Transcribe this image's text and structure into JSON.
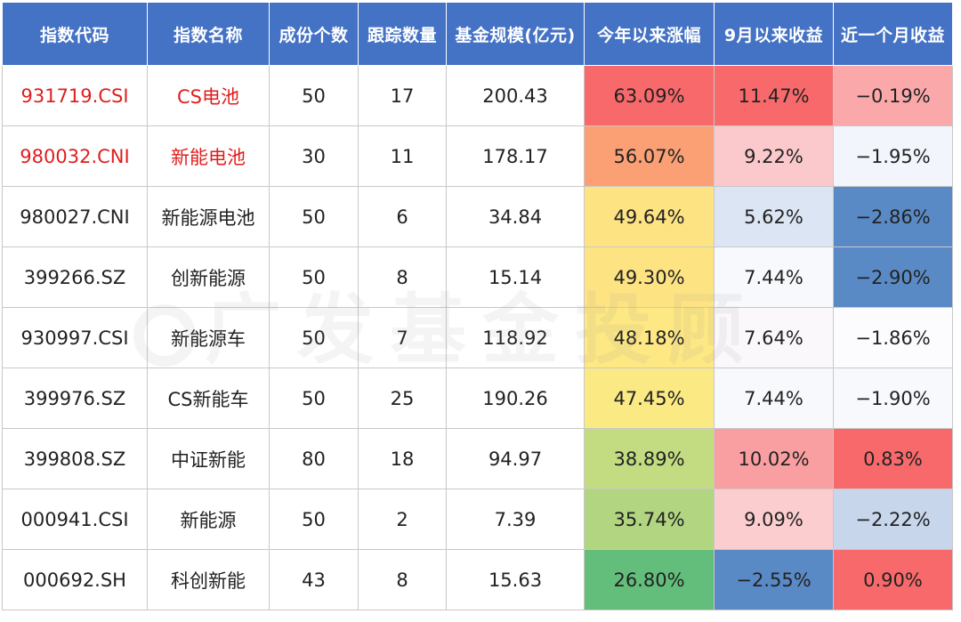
{
  "headers": [
    "指数代码",
    "指数名称",
    "成份个数",
    "跟踪数量",
    "基金规模(亿元)",
    "今年以来涨幅",
    "9月以来收益",
    "近一个月收益"
  ],
  "watermark": "广发基金投顾",
  "rows": [
    {
      "code": "931719.CSI",
      "name": "CS电池",
      "count": "50",
      "track": "17",
      "scale": "200.43",
      "ytd": "63.09%",
      "sep": "11.47%",
      "month": "−0.19%",
      "highlight": true,
      "colors": {
        "ytd": "#f8696b",
        "sep": "#f8696b",
        "month": "#fba8aa"
      }
    },
    {
      "code": "980032.CNI",
      "name": "新能电池",
      "count": "30",
      "track": "11",
      "scale": "178.17",
      "ytd": "56.07%",
      "sep": "9.22%",
      "month": "−1.95%",
      "highlight": true,
      "colors": {
        "ytd": "#fba075",
        "sep": "#fbc9cb",
        "month": "#f2f5fb"
      }
    },
    {
      "code": "980027.CNI",
      "name": "新能源电池",
      "count": "50",
      "track": "6",
      "scale": "34.84",
      "ytd": "49.64%",
      "sep": "5.62%",
      "month": "−2.86%",
      "highlight": false,
      "colors": {
        "ytd": "#fee383",
        "sep": "#dce5f3",
        "month": "#5a8ac6"
      }
    },
    {
      "code": "399266.SZ",
      "name": "创新能源",
      "count": "50",
      "track": "8",
      "scale": "15.14",
      "ytd": "49.30%",
      "sep": "7.44%",
      "month": "−2.90%",
      "highlight": false,
      "colors": {
        "ytd": "#fee383",
        "sep": "#f8f9fc",
        "month": "#5a8ac6"
      }
    },
    {
      "code": "930997.CSI",
      "name": "新能源车",
      "count": "50",
      "track": "7",
      "scale": "118.92",
      "ytd": "48.18%",
      "sep": "7.64%",
      "month": "−1.86%",
      "highlight": false,
      "colors": {
        "ytd": "#fde884",
        "sep": "#fbf8fb",
        "month": "#fcfcff"
      }
    },
    {
      "code": "399976.SZ",
      "name": "CS新能车",
      "count": "50",
      "track": "25",
      "scale": "190.26",
      "ytd": "47.45%",
      "sep": "7.44%",
      "month": "−1.90%",
      "highlight": false,
      "colors": {
        "ytd": "#fbea84",
        "sep": "#f8f9fc",
        "month": "#f8f9fd"
      }
    },
    {
      "code": "399808.SZ",
      "name": "中证新能",
      "count": "80",
      "track": "18",
      "scale": "94.97",
      "ytd": "38.89%",
      "sep": "10.02%",
      "month": "0.83%",
      "highlight": false,
      "colors": {
        "ytd": "#c3db81",
        "sep": "#fa9fa1",
        "month": "#f8696b"
      }
    },
    {
      "code": "000941.CSI",
      "name": "新能源",
      "count": "50",
      "track": "2",
      "scale": "7.39",
      "ytd": "35.74%",
      "sep": "9.09%",
      "month": "−2.22%",
      "highlight": false,
      "colors": {
        "ytd": "#b1d580",
        "sep": "#fbcdcf",
        "month": "#c8d6ec"
      }
    },
    {
      "code": "000692.SH",
      "name": "科创新能",
      "count": "43",
      "track": "8",
      "scale": "15.63",
      "ytd": "26.80%",
      "sep": "−2.55%",
      "month": "0.90%",
      "highlight": false,
      "colors": {
        "ytd": "#63be7b",
        "sep": "#5a8ac6",
        "month": "#f8696b"
      }
    }
  ]
}
